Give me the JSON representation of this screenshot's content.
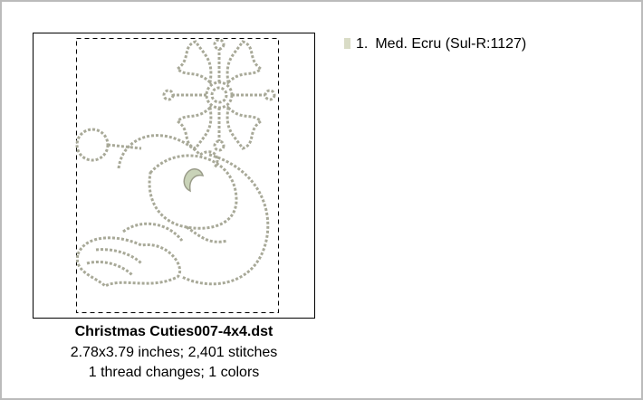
{
  "design": {
    "file_name": "Christmas Cuties007-4x4.dst",
    "size_line": "2.78x3.79 inches; 2,401 stitches",
    "changes_line": "1 thread changes; 1 colors"
  },
  "threads": [
    {
      "number": "1.",
      "name": "Med. Ecru (Sul-R:1127)",
      "color": "#d9dcc6"
    }
  ]
}
